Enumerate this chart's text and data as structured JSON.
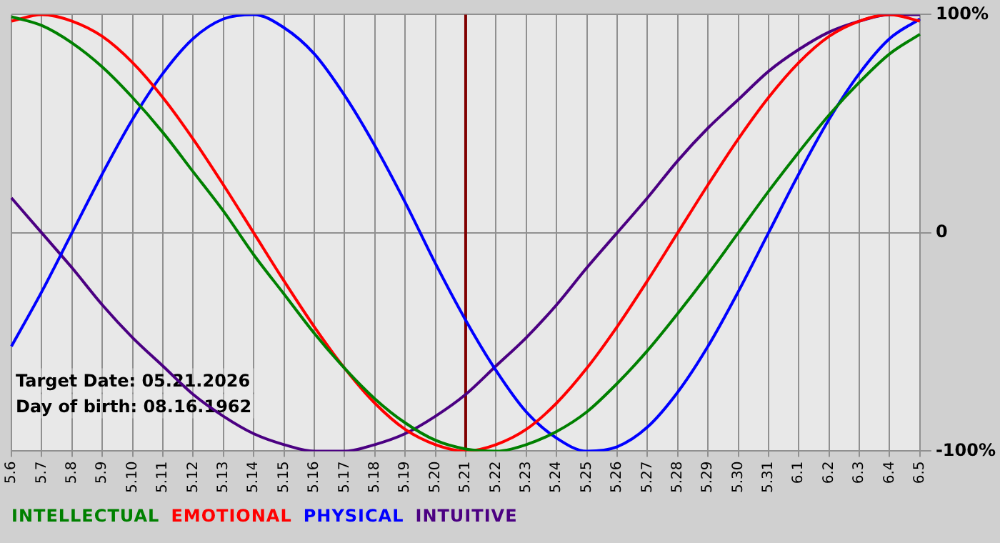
{
  "chart_data": {
    "type": "line",
    "categories": [
      "5.6",
      "5.7",
      "5.8",
      "5.9",
      "5.10",
      "5.11",
      "5.12",
      "5.13",
      "5.14",
      "5.15",
      "5.16",
      "5.17",
      "5.18",
      "5.19",
      "5.20",
      "5.21",
      "5.22",
      "5.23",
      "5.24",
      "5.25",
      "5.26",
      "5.27",
      "5.28",
      "5.29",
      "5.30",
      "5.31",
      "6.1",
      "6.2",
      "6.3",
      "6.4",
      "6.5"
    ],
    "series": [
      {
        "name": "INTELLECTUAL",
        "color": "#008000",
        "values": [
          99,
          95,
          87,
          76,
          62,
          46,
          28,
          10,
          -10,
          -28,
          -46,
          -62,
          -76,
          -87,
          -95,
          -99,
          -100,
          -97,
          -91,
          -82,
          -69,
          -54,
          -37,
          -19,
          0,
          19,
          37,
          54,
          69,
          82,
          91
        ]
      },
      {
        "name": "EMOTIONAL",
        "color": "#ff0000",
        "values": [
          97,
          100,
          97,
          90,
          78,
          62,
          43,
          22,
          0,
          -22,
          -43,
          -62,
          -78,
          -90,
          -97,
          -100,
          -97,
          -90,
          -78,
          -62,
          -43,
          -22,
          0,
          22,
          43,
          62,
          78,
          90,
          97,
          100,
          97
        ]
      },
      {
        "name": "PHYSICAL",
        "color": "#0000ff",
        "values": [
          -52,
          -27,
          0,
          27,
          52,
          73,
          89,
          98,
          100,
          94,
          82,
          63,
          40,
          14,
          -14,
          -40,
          -63,
          -82,
          -94,
          -100,
          -98,
          -89,
          -73,
          -52,
          -27,
          0,
          27,
          52,
          73,
          89,
          98
        ]
      },
      {
        "name": "INTUITIVE",
        "color": "#4b0082",
        "values": [
          16,
          0,
          -16,
          -33,
          -48,
          -61,
          -74,
          -84,
          -92,
          -97,
          -100,
          -100,
          -97,
          -92,
          -84,
          -74,
          -61,
          -48,
          -33,
          -16,
          0,
          16,
          33,
          48,
          61,
          74,
          84,
          92,
          97,
          100,
          100
        ]
      }
    ],
    "ylim": [
      -100,
      100
    ],
    "yticks": [
      {
        "value": 100,
        "label": "100%"
      },
      0,
      {
        "value": -100,
        "label": "-100%"
      }
    ],
    "grid": true,
    "legend": "bottom",
    "marker": "none",
    "ref_lines": [
      {
        "axis": "x",
        "value": "5.21",
        "color": "#800000"
      }
    ],
    "annotations": [
      "Target Date: 05.21.2026",
      "Day of birth: 08.16.1962"
    ]
  }
}
